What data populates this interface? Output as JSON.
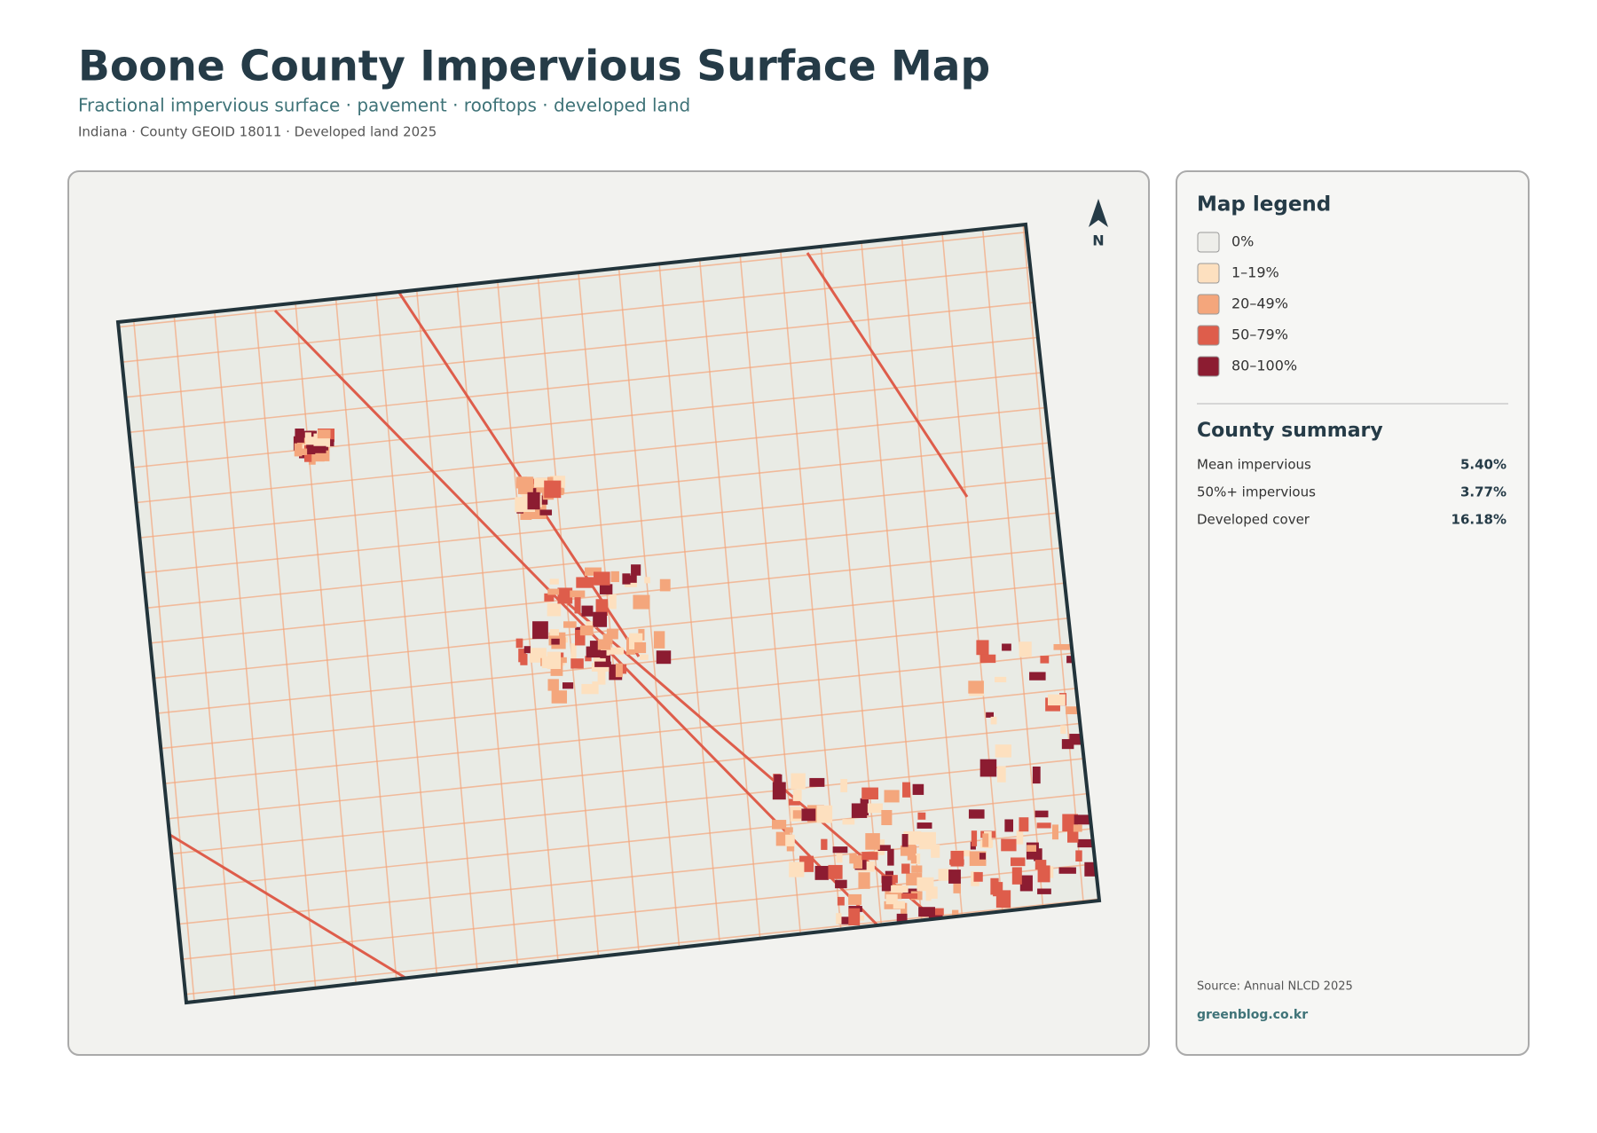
{
  "header": {
    "title": "Boone County Impervious Surface Map",
    "subtitle": "Fractional impervious surface · pavement · rooftops · developed land",
    "meta": "Indiana · County GEOID 18011 · Developed land 2025"
  },
  "map": {
    "north": "N"
  },
  "legend": {
    "title": "Map legend",
    "items": [
      {
        "label": "0%",
        "color": "#eeeeea"
      },
      {
        "label": "1–19%",
        "color": "#fde0bf"
      },
      {
        "label": "20–49%",
        "color": "#f4a67c"
      },
      {
        "label": "50–79%",
        "color": "#de5d4b"
      },
      {
        "label": "80–100%",
        "color": "#8c1c31"
      }
    ]
  },
  "summary": {
    "title": "County summary",
    "rows": [
      {
        "label": "Mean impervious",
        "value": "5.40%"
      },
      {
        "label": "50%+ impervious",
        "value": "3.77%"
      },
      {
        "label": "Developed cover",
        "value": "16.18%"
      }
    ]
  },
  "footer": {
    "source": "Source: Annual NLCD 2025",
    "credit": "greenblog.co.kr"
  }
}
